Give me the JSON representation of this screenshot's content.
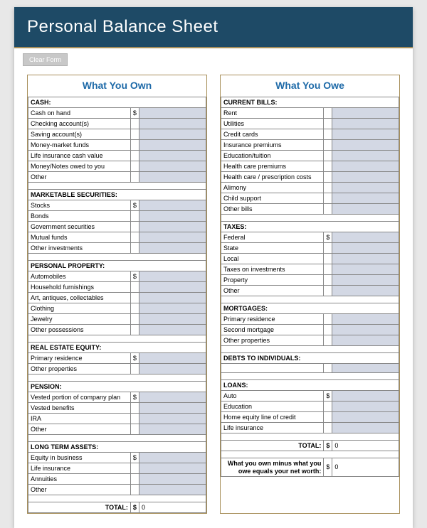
{
  "title": "Personal Balance Sheet",
  "clear_button": "Clear Form",
  "colors": {
    "banner_bg": "#1e4a66",
    "banner_text": "#ffffff",
    "accent_border": "#a88f5a",
    "header_text": "#1e6aa8",
    "input_bg": "#d3d8e4",
    "grid": "#888888",
    "page_bg": "#ffffff",
    "outer_bg": "#e8e8e8"
  },
  "fontsize": {
    "title": 24,
    "col_header": 14,
    "body": 9
  },
  "own": {
    "header": "What You Own",
    "sections": [
      {
        "title": "CASH:",
        "rows": [
          "Cash on hand",
          "Checking account(s)",
          "Saving account(s)",
          "Money-market funds",
          "Life insurance cash value",
          "Money/Notes owed to you",
          "Other"
        ],
        "show_dollar": true
      },
      {
        "title": "MARKETABLE SECURITIES:",
        "rows": [
          "Stocks",
          "Bonds",
          "Government securities",
          "Mutual funds",
          "Other investments"
        ],
        "show_dollar": true
      },
      {
        "title": "PERSONAL PROPERTY:",
        "rows": [
          "Automobiles",
          "Household furnishings",
          "Art, antiques, collectables",
          "Clothing",
          "Jewelry",
          "Other possessions"
        ],
        "show_dollar": true
      },
      {
        "title": "REAL ESTATE EQUITY:",
        "rows": [
          "Primary residence",
          "Other properties"
        ],
        "show_dollar": true
      },
      {
        "title": "PENSION:",
        "rows": [
          "Vested portion of company plan",
          "Vested benefits",
          "IRA",
          "Other"
        ],
        "show_dollar": true
      },
      {
        "title": "LONG TERM ASSETS:",
        "rows": [
          "Equity in business",
          "Life insurance",
          "Annuities",
          "Other"
        ],
        "show_dollar": true
      }
    ],
    "total_label": "TOTAL:",
    "total_value": "0"
  },
  "owe": {
    "header": "What You Owe",
    "sections": [
      {
        "title": "CURRENT BILLS:",
        "rows": [
          "Rent",
          "Utilities",
          "Credit cards",
          "Insurance premiums",
          "Education/tuition",
          "Health care premiums",
          "Health care / prescription costs",
          "Alimony",
          "Child support",
          "Other bills"
        ],
        "show_dollar": false
      },
      {
        "title": "TAXES:",
        "rows": [
          "Federal",
          "State",
          "Local",
          "Taxes on investments",
          "Property",
          "Other"
        ],
        "show_dollar": true
      },
      {
        "title": "MORTGAGES:",
        "rows": [
          "Primary residence",
          "Second mortgage",
          "Other properties"
        ],
        "show_dollar": false
      },
      {
        "title": "DEBTS TO INDIVIDUALS:",
        "rows": [
          ""
        ],
        "show_dollar": false
      },
      {
        "title": "LOANS:",
        "rows": [
          "Auto",
          "Education",
          "Home equity line of credit",
          "Life insurance"
        ],
        "show_dollar": true
      }
    ],
    "total_label": "TOTAL:",
    "total_value": "0",
    "networth_label": "What you own minus what you owe equals your net worth:",
    "networth_value": "0"
  }
}
